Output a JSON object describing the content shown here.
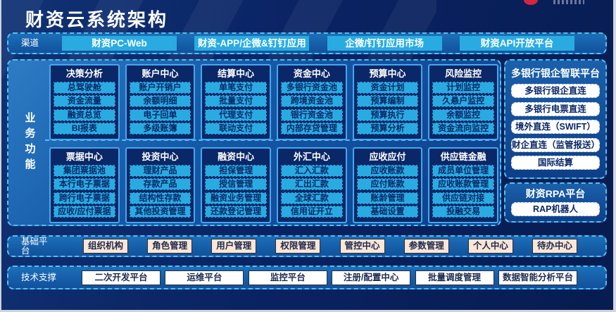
{
  "window": {
    "title": "财资云系统架构"
  },
  "channels": {
    "label": "渠道",
    "items": [
      "财资PC-Web",
      "财资-APP/企微&钉钉应用",
      "企微/钉钉应用市场",
      "财资API开放平台"
    ]
  },
  "business": {
    "label": "业务功能",
    "modules": [
      {
        "title": "决策分析",
        "items": [
          "总驾驶舱",
          "资金流量",
          "融资总览",
          "BI报表"
        ]
      },
      {
        "title": "账户中心",
        "items": [
          "账户开销户",
          "余额明细",
          "电子回单",
          "多级账簿"
        ]
      },
      {
        "title": "结算中心",
        "items": [
          "单笔支付",
          "批量支付",
          "代理支付",
          "联动支付"
        ]
      },
      {
        "title": "资金中心",
        "items": [
          "多银行资金池",
          "跨境资金池",
          "银行资金池",
          "内部存贷管理"
        ]
      },
      {
        "title": "预算中心",
        "items": [
          "资金计划",
          "预算编制",
          "预算执行",
          "预算分析"
        ]
      },
      {
        "title": "风险监控",
        "items": [
          "计划监控",
          "久悬户监控",
          "余额监控",
          "资金流向监控"
        ]
      },
      {
        "title": "票据中心",
        "items": [
          "集团票据池",
          "本行电子票据",
          "跨行电子票据",
          "应收/应付票据"
        ]
      },
      {
        "title": "投资中心",
        "items": [
          "理财产品",
          "存款产品",
          "结构性存款",
          "其他投资管理"
        ]
      },
      {
        "title": "融资中心",
        "items": [
          "担保管理",
          "授信管理",
          "融资业务管理",
          "还款登记管理"
        ]
      },
      {
        "title": "外汇中心",
        "items": [
          "汇入汇款",
          "汇出汇款",
          "全球汇款",
          "信用证开立"
        ]
      },
      {
        "title": "应收应付",
        "items": [
          "应收账款",
          "应付账款",
          "账龄管理",
          "基础设置"
        ]
      },
      {
        "title": "供应链金融",
        "items": [
          "成员单位管理",
          "应收账款管理",
          "供应链对接",
          "投融交易"
        ]
      }
    ]
  },
  "bank_platform": {
    "title": "多银行银企智联平台",
    "items": [
      "多银行银企直连",
      "多银行电票直连",
      "境外直连（SWIFT）",
      "财企直连（监管报送）",
      "国际结算"
    ]
  },
  "rpa_platform": {
    "title": "财资RPA平台",
    "items": [
      "RAP机器人"
    ]
  },
  "base_platform": {
    "label": "基础平台",
    "items": [
      "组织机构",
      "角色管理",
      "用户管理",
      "权限管理",
      "管控中心",
      "参数管理",
      "个人中心",
      "待办中心"
    ]
  },
  "tech_support": {
    "label": "技术支撑",
    "items": [
      "二次开发平台",
      "运维平台",
      "监控平台",
      "注册/配置中心",
      "批量调度管理",
      "数据智能分析平台"
    ]
  },
  "colors": {
    "background_navy": "#0a2363",
    "panel_blue": "#1767b0",
    "dashed_border_cyan": "#55c0ee",
    "accent_cyan": "#29abe2",
    "module_bg": "#0a2767",
    "module_border": "#42a9ef",
    "peach_button": "#fbe5d5",
    "white_button": "#ffffff",
    "logo_red": "#d6263e"
  }
}
